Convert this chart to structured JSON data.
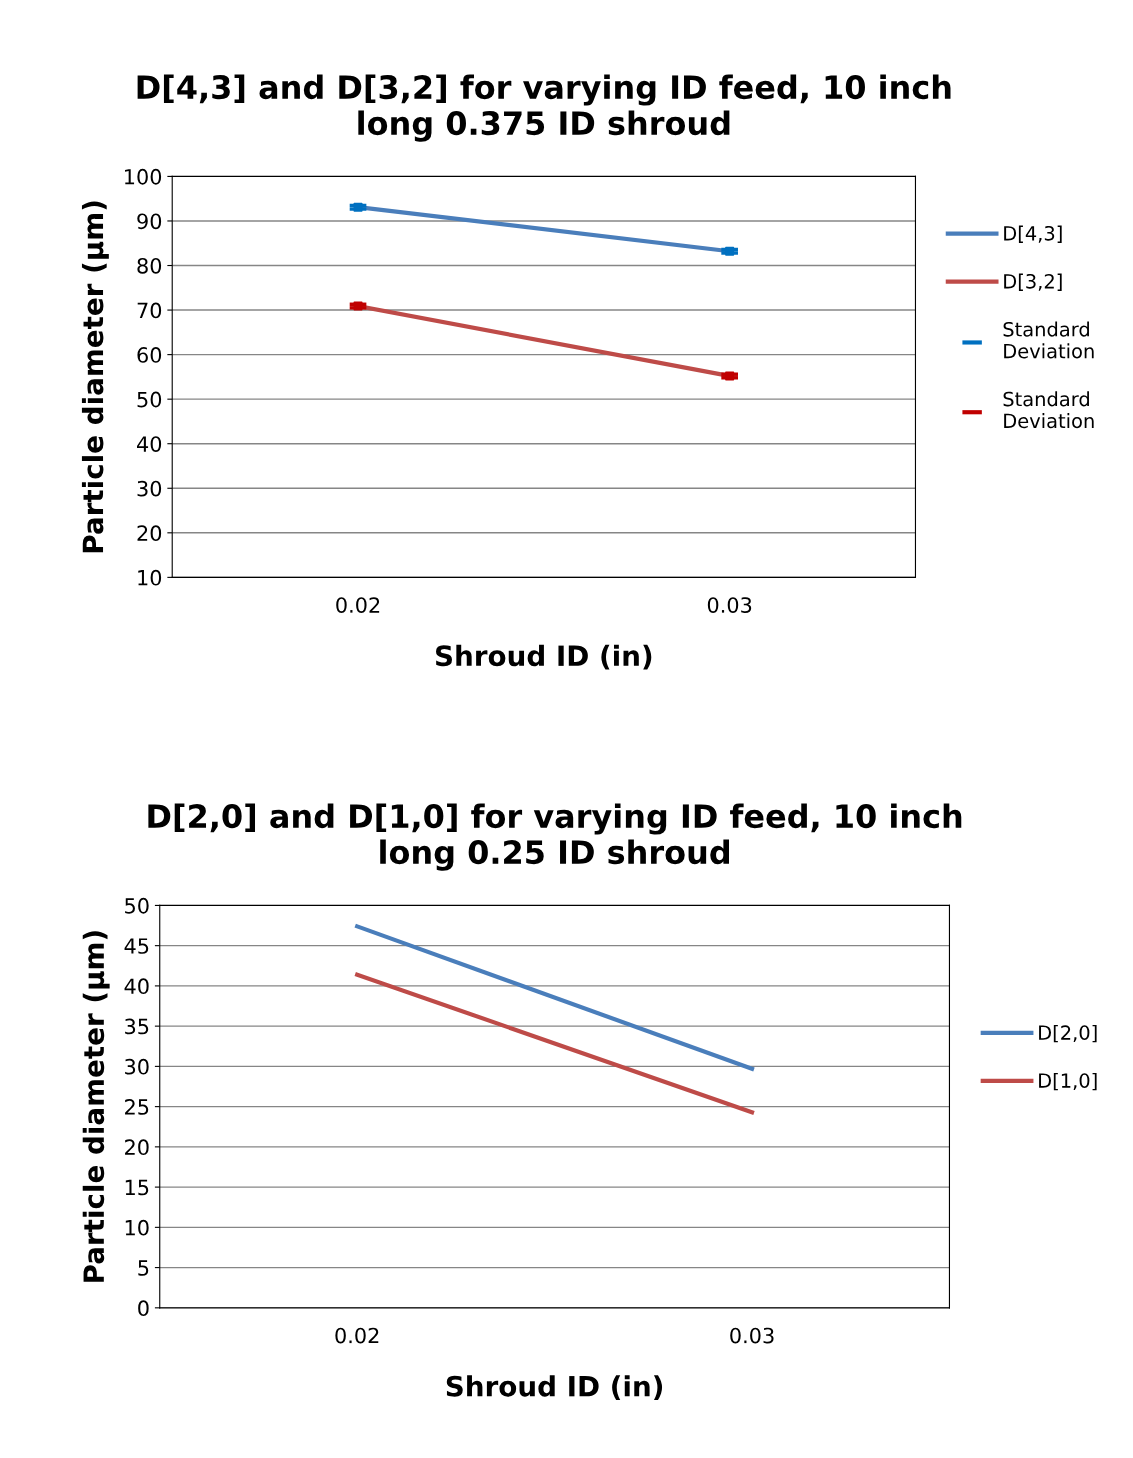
{
  "chart_data": [
    {
      "type": "line",
      "title": "D[4,3] and D[3,2] for varying ID feed, 10 inch long 0.375 ID shroud",
      "xlabel": "Shroud ID (in)",
      "ylabel": "Particle diameter (µm)",
      "categories": [
        "0.02",
        "0.03"
      ],
      "ylim": [
        10,
        100
      ],
      "yticks": [
        10,
        20,
        30,
        40,
        50,
        60,
        70,
        80,
        90,
        100
      ],
      "grid": "y",
      "legend": "right",
      "series": [
        {
          "name": "D[4,3]",
          "color": "#4a7ebb",
          "values": [
            93.1,
            83.2
          ]
        },
        {
          "name": "D[3,2]",
          "color": "#be4b48",
          "values": [
            70.9,
            55.2
          ]
        },
        {
          "name": "Standard Deviation",
          "type": "scatter",
          "marker": "square",
          "color": "#0070c0",
          "values": [
            93.1,
            83.2
          ],
          "errors": [
            0.4,
            0.4
          ]
        },
        {
          "name": "Standard Deviation",
          "type": "scatter",
          "marker": "square",
          "color": "#c00000",
          "values": [
            70.9,
            55.2
          ],
          "errors": [
            0.4,
            0.4
          ]
        }
      ]
    },
    {
      "type": "line",
      "title": "D[2,0] and D[1,0] for varying ID feed, 10 inch long 0.25 ID shroud",
      "xlabel": "Shroud ID (in)",
      "ylabel": "Particle diameter (µm)",
      "categories": [
        "0.02",
        "0.03"
      ],
      "ylim": [
        0,
        50
      ],
      "yticks": [
        0,
        5,
        10,
        15,
        20,
        25,
        30,
        35,
        40,
        45,
        50
      ],
      "grid": "y",
      "legend": "right",
      "series": [
        {
          "name": "D[2,0]",
          "color": "#4a7ebb",
          "values": [
            47.4,
            29.7
          ]
        },
        {
          "name": "D[1,0]",
          "color": "#be4b48",
          "values": [
            41.4,
            24.3
          ]
        }
      ]
    }
  ]
}
